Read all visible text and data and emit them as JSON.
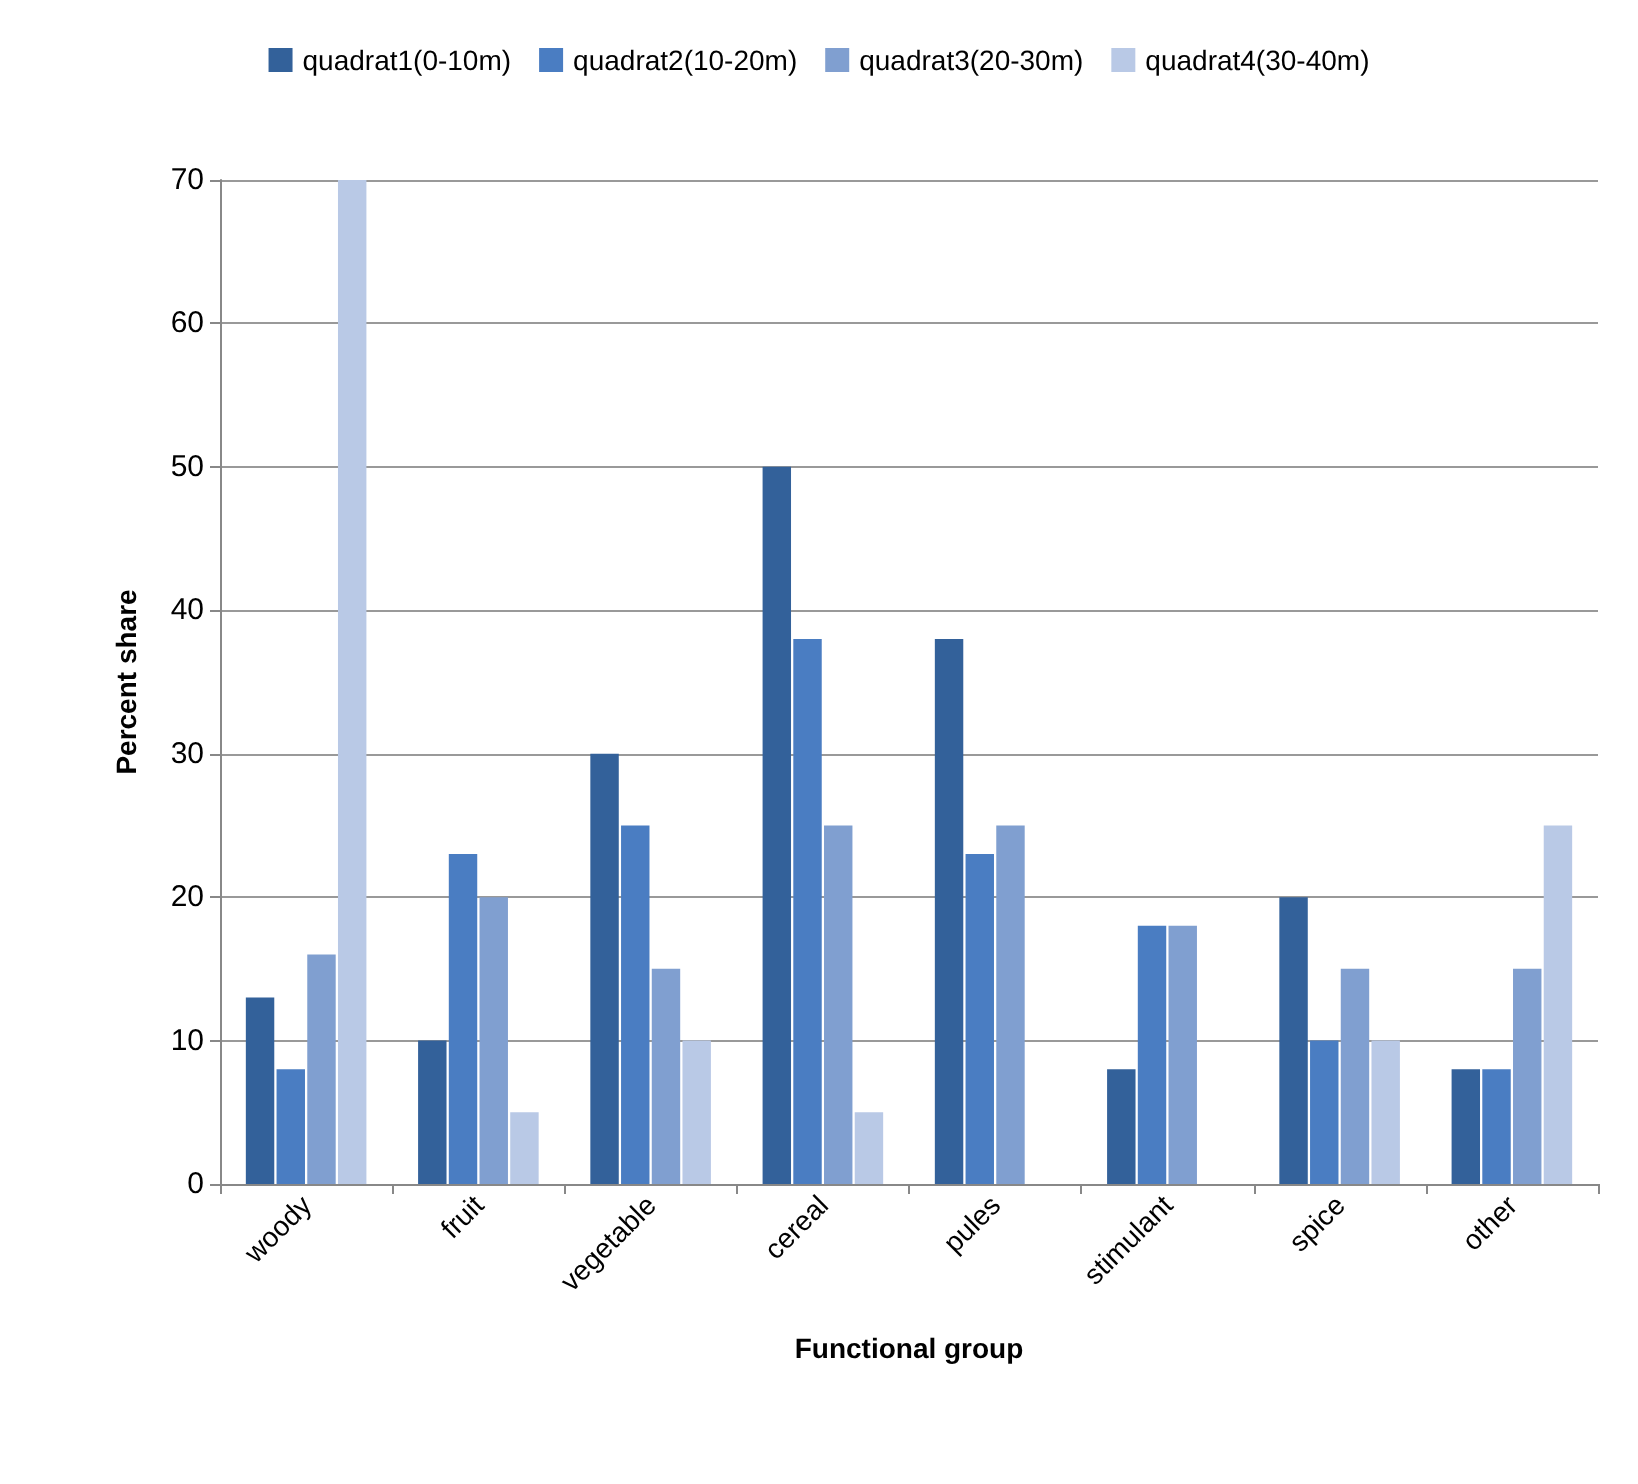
{
  "chart_data": {
    "type": "bar",
    "xlabel": "Functional group",
    "ylabel": "Percent share",
    "categories": [
      "woody",
      "fruit",
      "vegetable",
      "cereal",
      "pules",
      "stimulant",
      "spice",
      "other"
    ],
    "series": [
      {
        "name": "quadrat1(0-10m)",
        "color": "#33619a",
        "values": [
          13,
          10,
          30,
          50,
          38,
          8,
          20,
          8
        ]
      },
      {
        "name": "quadrat2(10-20m)",
        "color": "#4a7dc2",
        "values": [
          8,
          23,
          25,
          38,
          23,
          18,
          10,
          8
        ]
      },
      {
        "name": "quadrat3(20-30m)",
        "color": "#809fd0",
        "values": [
          16,
          20,
          15,
          25,
          25,
          18,
          15,
          15
        ]
      },
      {
        "name": "quadrat4(30-40m)",
        "color": "#b9c9e6",
        "values": [
          70,
          5,
          10,
          5,
          0,
          0,
          10,
          25
        ]
      }
    ],
    "ylim": [
      0,
      70
    ],
    "yticks": [
      0,
      10,
      20,
      30,
      40,
      50,
      60,
      70
    ],
    "grid": "y",
    "legend": "top"
  }
}
